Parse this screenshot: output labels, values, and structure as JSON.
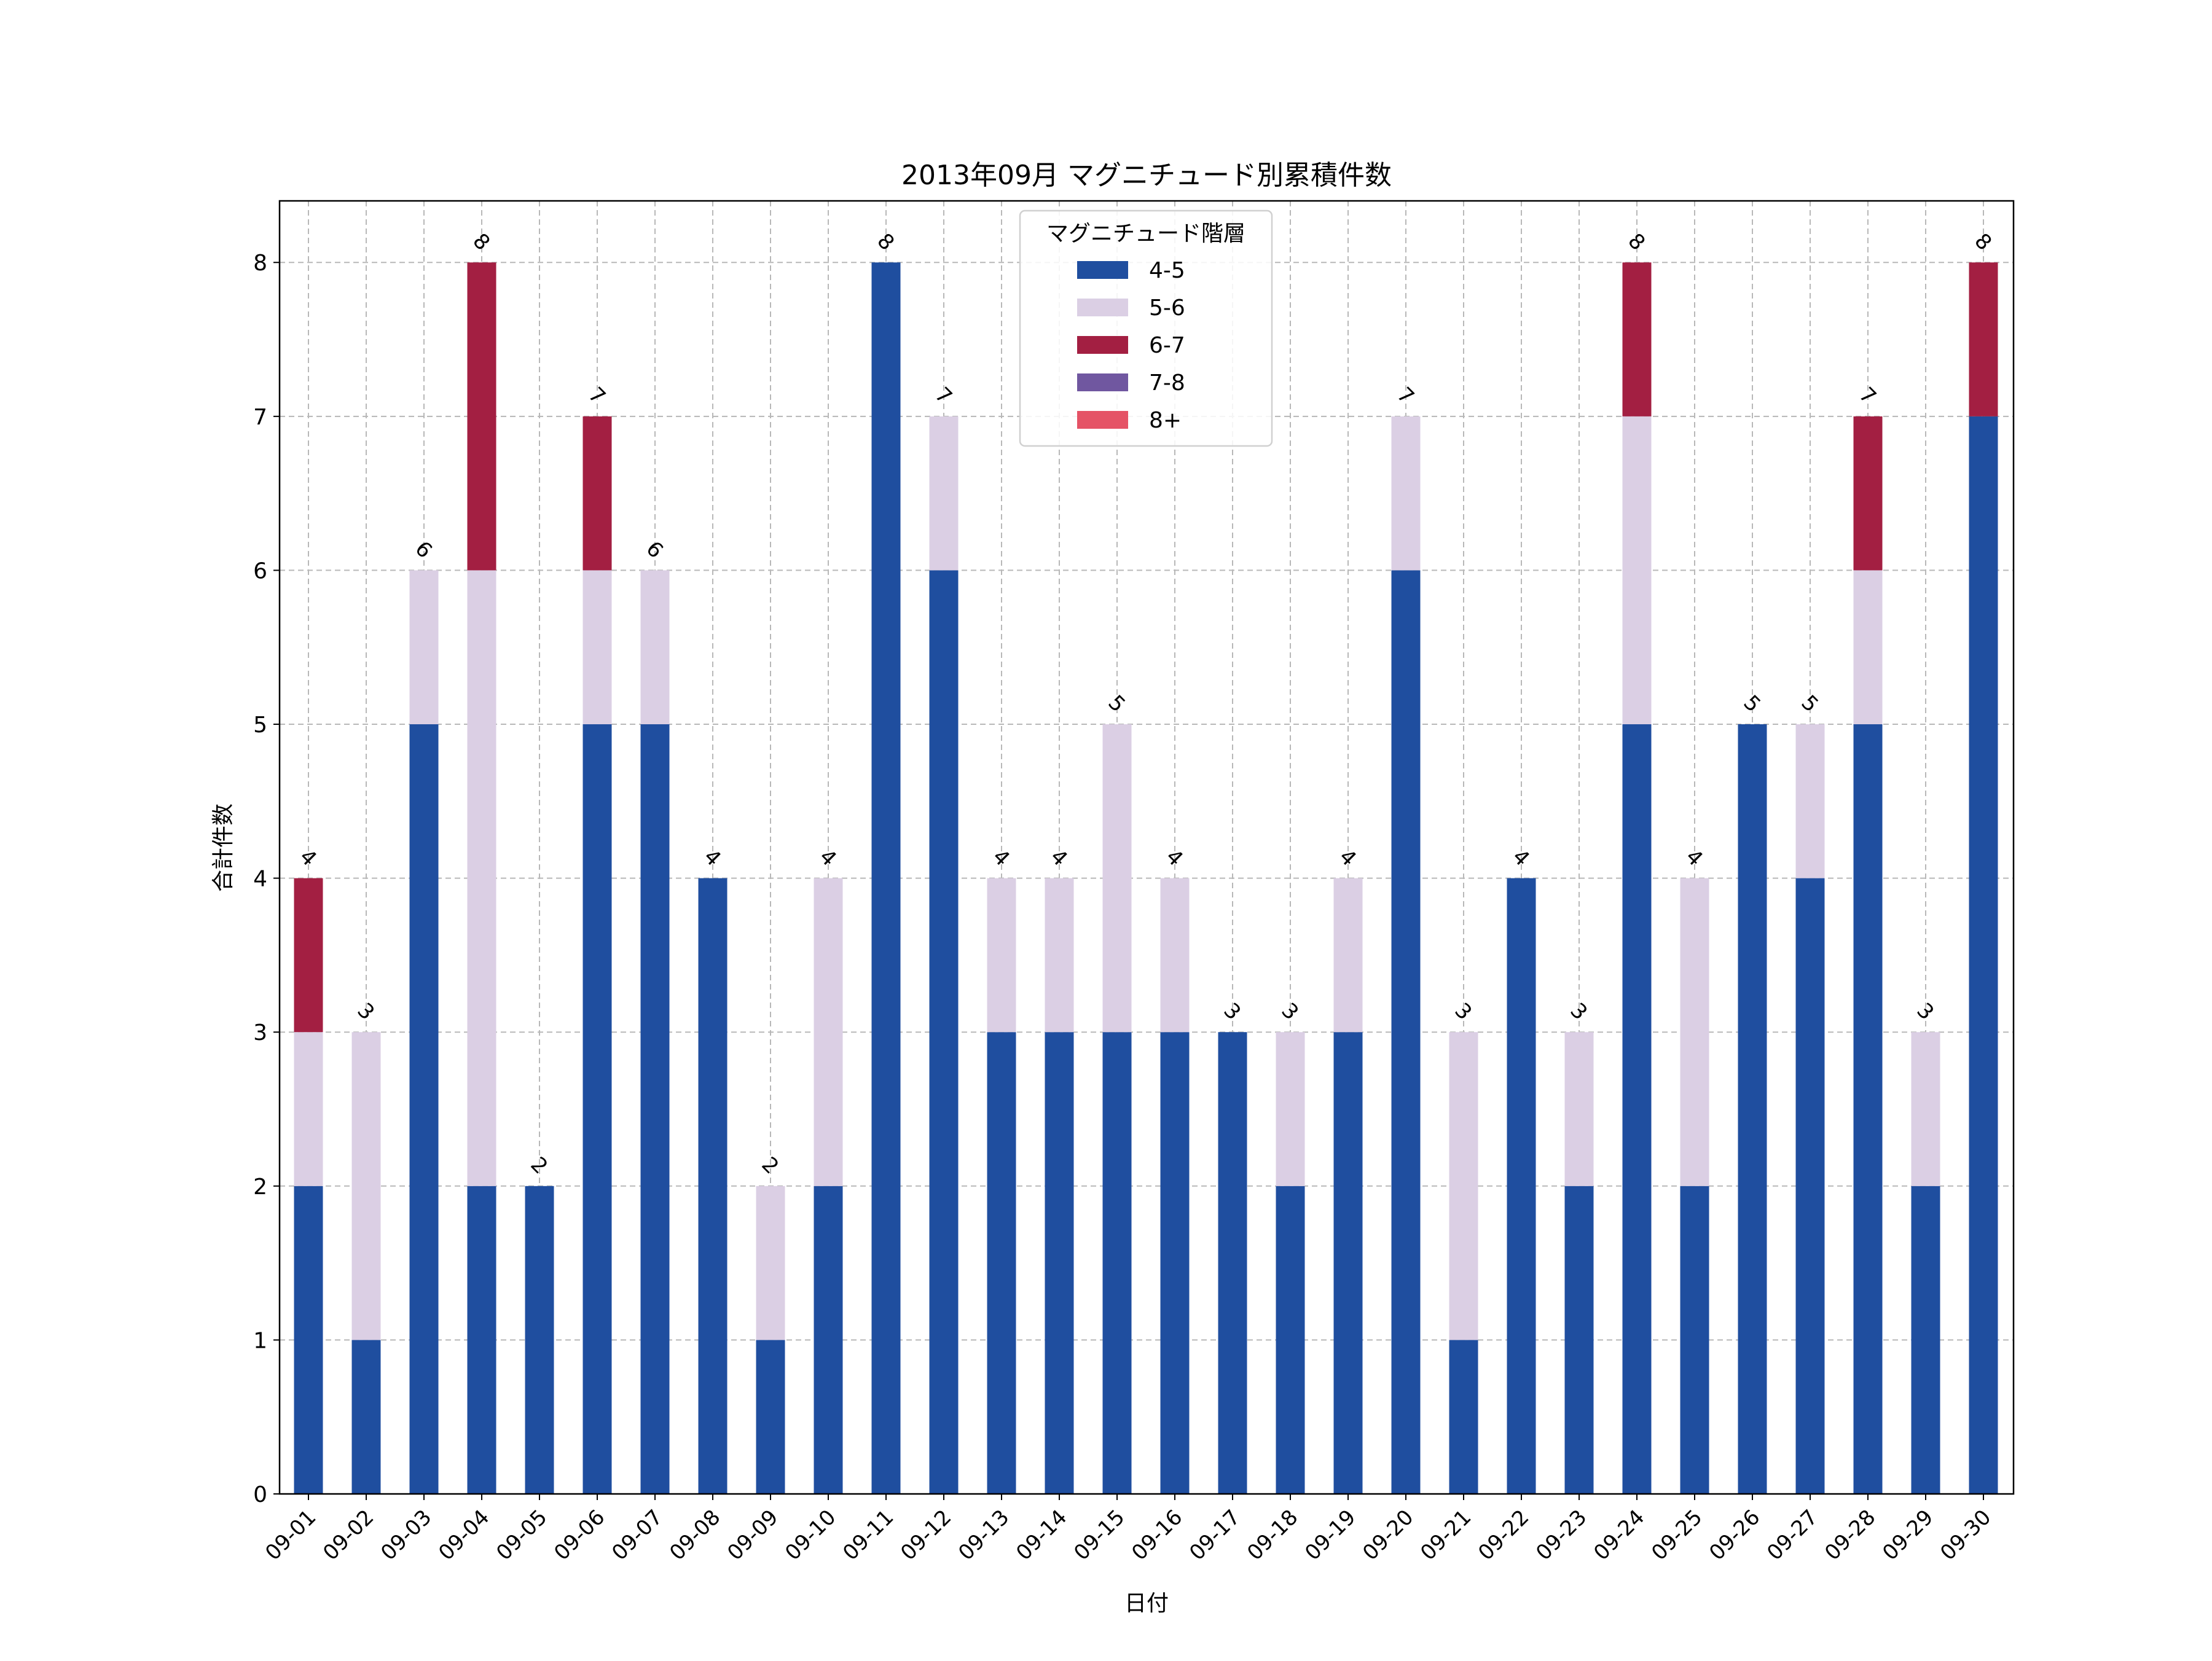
{
  "chart_data": {
    "type": "bar",
    "stacked": true,
    "title": "2013年09月 マグニチュード別累積件数",
    "xlabel": "日付",
    "ylabel": "合計件数",
    "ylim": [
      0,
      8.4
    ],
    "yticks": [
      0,
      1,
      2,
      3,
      4,
      5,
      6,
      7,
      8
    ],
    "grid": true,
    "legend": {
      "title": "マグニチュード階層",
      "placement": "top-center"
    },
    "categories": [
      "09-01",
      "09-02",
      "09-03",
      "09-04",
      "09-05",
      "09-06",
      "09-07",
      "09-08",
      "09-09",
      "09-10",
      "09-11",
      "09-12",
      "09-13",
      "09-14",
      "09-15",
      "09-16",
      "09-17",
      "09-18",
      "09-19",
      "09-20",
      "09-21",
      "09-22",
      "09-23",
      "09-24",
      "09-25",
      "09-26",
      "09-27",
      "09-28",
      "09-29",
      "09-30"
    ],
    "series": [
      {
        "name": "4-5",
        "color": "#1f4e9f",
        "values": [
          2,
          1,
          5,
          2,
          2,
          5,
          5,
          4,
          1,
          2,
          8,
          6,
          3,
          3,
          3,
          3,
          3,
          2,
          3,
          6,
          1,
          4,
          2,
          5,
          2,
          5,
          4,
          5,
          2,
          7
        ]
      },
      {
        "name": "5-6",
        "color": "#dbcfe4",
        "values": [
          1,
          2,
          1,
          4,
          0,
          1,
          1,
          0,
          1,
          2,
          0,
          1,
          1,
          1,
          2,
          1,
          0,
          1,
          1,
          1,
          2,
          0,
          1,
          2,
          2,
          0,
          1,
          1,
          1,
          0
        ]
      },
      {
        "name": "6-7",
        "color": "#a31f42",
        "values": [
          1,
          0,
          0,
          2,
          0,
          1,
          0,
          0,
          0,
          0,
          0,
          0,
          0,
          0,
          0,
          0,
          0,
          0,
          0,
          0,
          0,
          0,
          0,
          1,
          0,
          0,
          0,
          1,
          0,
          1
        ]
      },
      {
        "name": "7-8",
        "color": "#7057a0",
        "values": [
          0,
          0,
          0,
          0,
          0,
          0,
          0,
          0,
          0,
          0,
          0,
          0,
          0,
          0,
          0,
          0,
          0,
          0,
          0,
          0,
          0,
          0,
          0,
          0,
          0,
          0,
          0,
          0,
          0,
          0
        ]
      },
      {
        "name": "8+",
        "color": "#e55366",
        "values": [
          0,
          0,
          0,
          0,
          0,
          0,
          0,
          0,
          0,
          0,
          0,
          0,
          0,
          0,
          0,
          0,
          0,
          0,
          0,
          0,
          0,
          0,
          0,
          0,
          0,
          0,
          0,
          0,
          0,
          0
        ]
      }
    ],
    "totals": [
      4,
      3,
      6,
      8,
      2,
      7,
      6,
      4,
      2,
      4,
      8,
      7,
      4,
      4,
      5,
      4,
      3,
      3,
      4,
      7,
      3,
      4,
      3,
      8,
      4,
      5,
      5,
      7,
      3,
      8
    ]
  }
}
